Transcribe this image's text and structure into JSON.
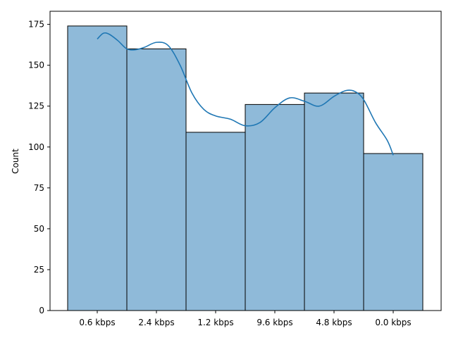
{
  "chart_data": {
    "type": "bar",
    "title": "",
    "xlabel": "",
    "ylabel": "Count",
    "categories": [
      "0.6 kbps",
      "2.4 kbps",
      "1.2 kbps",
      "9.6 kbps",
      "4.8 kbps",
      "0.0 kbps"
    ],
    "values": [
      174,
      160,
      109,
      126,
      133,
      96
    ],
    "ylim": [
      0,
      183
    ],
    "yticks": [
      0,
      25,
      50,
      75,
      100,
      125,
      150,
      175
    ],
    "grid": false,
    "bar_color": "#8fbad9",
    "bar_edge_color": "#000000",
    "kde": {
      "color": "#1f77b4",
      "x": [
        0,
        0.1,
        0.2,
        0.35,
        0.5,
        0.65,
        0.8,
        1.0,
        1.2,
        1.4,
        1.6,
        1.8,
        2.0,
        2.25,
        2.5,
        2.75,
        3.0,
        3.25,
        3.5,
        3.75,
        4.0,
        4.2,
        4.35,
        4.5,
        4.7,
        4.9,
        5.0
      ],
      "y": [
        166,
        169.5,
        169,
        165,
        160,
        159.5,
        161,
        164,
        162,
        150,
        133,
        123,
        119,
        117,
        113,
        115,
        124,
        130,
        128,
        125,
        131,
        134.5,
        134,
        129,
        115,
        104,
        95
      ]
    }
  }
}
